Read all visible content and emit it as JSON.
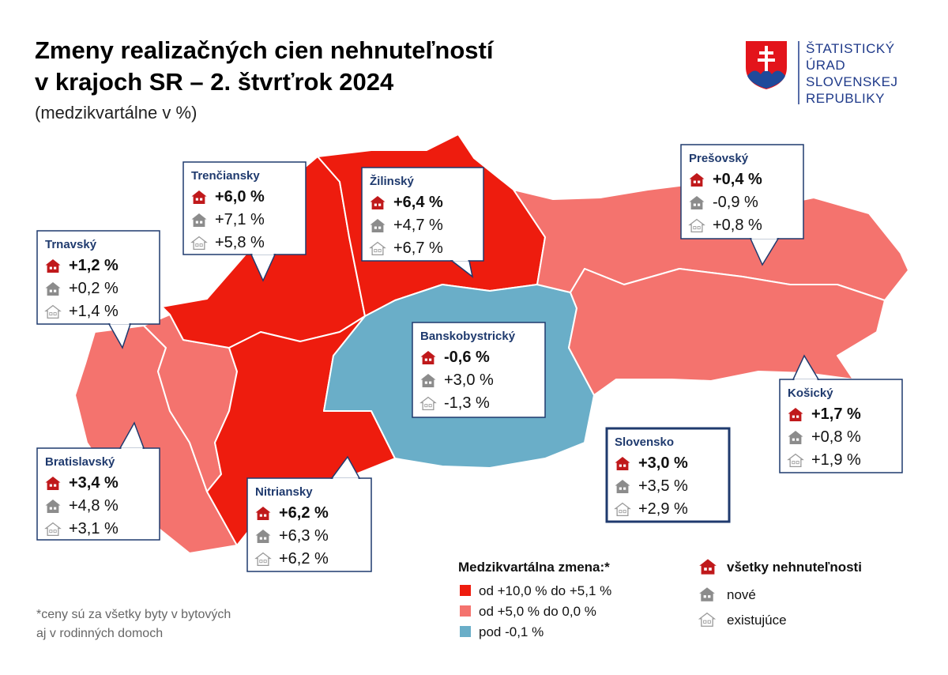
{
  "header": {
    "title": [
      "Zmeny realizačných cien nehnuteľností",
      "v krajoch SR – 2. štvrťrok 2024"
    ],
    "subtitle": "(medzikvartálne v %)"
  },
  "logo": {
    "lines": [
      "ŠTATISTICKÝ",
      "ÚRAD",
      "SLOVENSKEJ",
      "REPUBLIKY"
    ]
  },
  "regions": [
    {
      "name": "Trnavský",
      "all": "+1,2 %",
      "new": "+0,2 %",
      "existing": "+1,4 %"
    },
    {
      "name": "Trenčiansky",
      "all": "+6,0 %",
      "new": "+7,1 %",
      "existing": "+5,8 %"
    },
    {
      "name": "Žilinský",
      "all": "+6,4 %",
      "new": "+4,7 %",
      "existing": "+6,7 %"
    },
    {
      "name": "Prešovský",
      "all": "+0,4 %",
      "new": "-0,9 %",
      "existing": "+0,8 %"
    },
    {
      "name": "Banskobystrický",
      "all": "-0,6 %",
      "new": "+3,0 %",
      "existing": "-1,3 %"
    },
    {
      "name": "Košický",
      "all": "+1,7 %",
      "new": "+0,8 %",
      "existing": "+1,9 %"
    },
    {
      "name": "Bratislavský",
      "all": "+3,4 %",
      "new": "+4,8 %",
      "existing": "+3,1 %"
    },
    {
      "name": "Nitriansky",
      "all": "+6,2 %",
      "new": "+6,3 %",
      "existing": "+6,2 %"
    },
    {
      "name": "Slovensko",
      "all": "+3,0 %",
      "new": "+3,5 %",
      "existing": "+2,9 %"
    }
  ],
  "legend": {
    "title": "Medzikvartálna zmena:*",
    "items": [
      "od +10,0 % do +5,1 %",
      "od +5,0 % do 0,0 %",
      "pod -0,1 %"
    ]
  },
  "types": {
    "all": "všetky nehnuteľnosti",
    "new": "nové",
    "existing": "existujúce"
  },
  "footnote": [
    "*ceny sú za všetky byty v bytových",
    "aj v rodinných domoch"
  ]
}
